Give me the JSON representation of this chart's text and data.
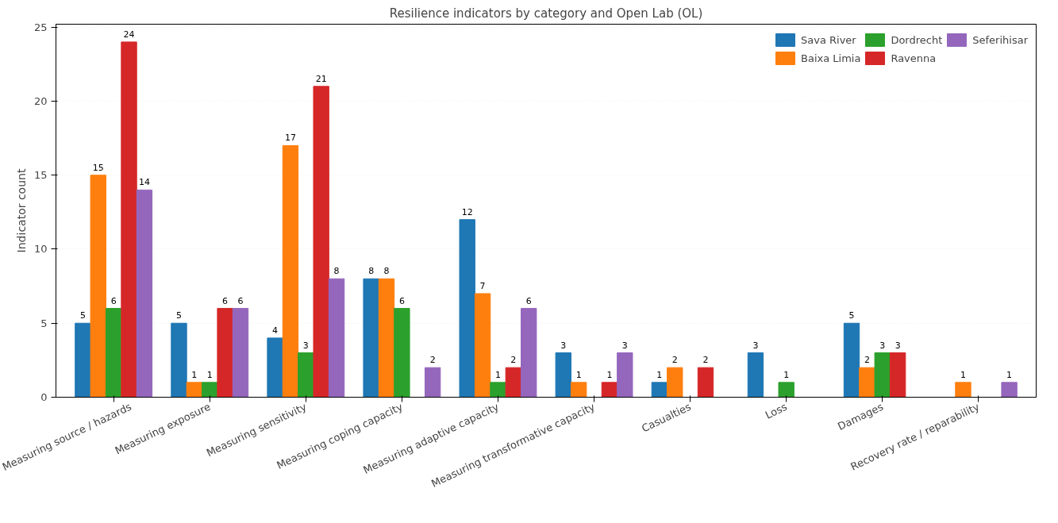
{
  "chart_data": {
    "type": "bar",
    "title": "Resilience indicators by category and Open Lab (OL)",
    "ylabel": "Indicator count",
    "categories": [
      "Measuring source / hazards",
      "Measuring exposure",
      "Measuring sensitivity",
      "Measuring coping capacity",
      "Measuring adaptive capacity",
      "Measuring transformative capacity",
      "Casualties",
      "Loss",
      "Damages",
      "Recovery rate / reparability"
    ],
    "series": [
      {
        "name": "Sava River",
        "color": "#1f77b4",
        "values": [
          5,
          5,
          4,
          8,
          12,
          3,
          1,
          3,
          5,
          0
        ],
        "value_labels": [
          "5",
          "5",
          "4",
          "8",
          "12",
          "3",
          "1",
          "3",
          "5",
          null
        ]
      },
      {
        "name": "Baixa Limia",
        "color": "#ff7f0e",
        "values": [
          15,
          1,
          17,
          8,
          7,
          1,
          2,
          0,
          2,
          1
        ],
        "value_labels": [
          "15",
          "1",
          "17",
          "8",
          "7",
          "1",
          "2",
          null,
          "2",
          "1"
        ]
      },
      {
        "name": "Dordrecht",
        "color": "#2ca02c",
        "values": [
          6,
          1,
          3,
          6,
          1,
          0,
          0,
          1,
          3,
          0
        ],
        "value_labels": [
          "6",
          "1",
          "3",
          "6",
          "1",
          null,
          null,
          "1",
          "3",
          null
        ]
      },
      {
        "name": "Ravenna",
        "color": "#d62728",
        "values": [
          24,
          6,
          21,
          0,
          2,
          1,
          2,
          0,
          3,
          0
        ],
        "value_labels": [
          "24",
          "6",
          "21",
          null,
          "2",
          "1",
          "2",
          null,
          "3",
          null
        ]
      },
      {
        "name": "Seferihisar",
        "color": "#9467bd",
        "values": [
          14,
          6,
          8,
          2,
          6,
          3,
          0,
          0,
          0,
          1
        ],
        "value_labels": [
          "14",
          "6",
          "8",
          "2",
          "6",
          "3",
          null,
          null,
          null,
          "1"
        ]
      }
    ],
    "ylim": [
      0,
      25.2
    ],
    "yticks": [
      0,
      5,
      10,
      15,
      20,
      25
    ],
    "grid": "y",
    "legend": "top right"
  }
}
